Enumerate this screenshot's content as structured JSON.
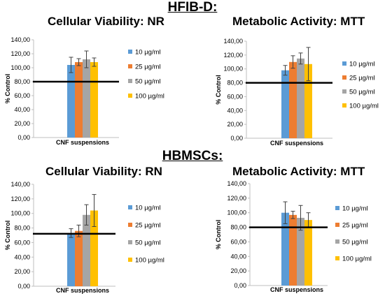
{
  "sections": [
    {
      "title": "HFIB-D:"
    },
    {
      "title": "HBMSCs:"
    }
  ],
  "chart_data": [
    {
      "type": "bar",
      "title": "Cellular Viability: NR",
      "ylabel": "% Control",
      "xlabel": "CNF suspensions",
      "ylim": [
        0,
        140
      ],
      "yticks": [
        "0,00",
        "20,00",
        "40,00",
        "60,00",
        "80,00",
        "100,00",
        "120,00",
        "140,00"
      ],
      "reference_line": 80,
      "series": [
        {
          "name": "10 µg/ml",
          "color": "#5B9BD5",
          "value": 104,
          "error": 11
        },
        {
          "name": "25 µg/ml",
          "color": "#ED7D31",
          "value": 108,
          "error": 5
        },
        {
          "name": "50 µg/ml",
          "color": "#A5A5A5",
          "value": 112,
          "error": 12
        },
        {
          "name": "100 µg/ml",
          "color": "#FFC000",
          "value": 108,
          "error": 6
        }
      ]
    },
    {
      "type": "bar",
      "title": "Metabolic Activity: MTT",
      "ylabel": "% Control",
      "xlabel": "CNF suspensions",
      "ylim": [
        0,
        140
      ],
      "yticks": [
        "0,00",
        "20,00",
        "40,00",
        "60,00",
        "80,00",
        "100,00",
        "120,00",
        "140,00"
      ],
      "reference_line": 80,
      "series": [
        {
          "name": "10 µg/ml",
          "color": "#5B9BD5",
          "value": 98,
          "error": 7
        },
        {
          "name": "25 µg/ml",
          "color": "#ED7D31",
          "value": 110,
          "error": 9
        },
        {
          "name": "50 µg/ml",
          "color": "#A5A5A5",
          "value": 115,
          "error": 8
        },
        {
          "name": "100 µg/ml",
          "color": "#FFC000",
          "value": 107,
          "error": 24
        }
      ]
    },
    {
      "type": "bar",
      "title": "Cellular Viability: RN",
      "ylabel": "% Control",
      "xlabel": "CNF suspensions",
      "ylim": [
        0,
        140
      ],
      "yticks": [
        "0,00",
        "20,00",
        "40,00",
        "60,00",
        "80,00",
        "100,00",
        "120,00",
        "140,00"
      ],
      "reference_line": 72,
      "series": [
        {
          "name": "10 µg/ml",
          "color": "#5B9BD5",
          "value": 73,
          "error": 6
        },
        {
          "name": "25 µg/ml",
          "color": "#ED7D31",
          "value": 76,
          "error": 8
        },
        {
          "name": "50 µg/ml",
          "color": "#A5A5A5",
          "value": 98,
          "error": 14
        },
        {
          "name": "100 µg/ml",
          "color": "#FFC000",
          "value": 104,
          "error": 22
        }
      ]
    },
    {
      "type": "bar",
      "title": "Metabolic Activity: MTT",
      "ylabel": "% Control",
      "xlabel": "CNF suspensions",
      "ylim": [
        0,
        140
      ],
      "yticks": [
        "0,00",
        "20,00",
        "40,00",
        "60,00",
        "80,00",
        "100,00",
        "120,00",
        "140,00"
      ],
      "reference_line": 80,
      "series": [
        {
          "name": "10 µg/ml",
          "color": "#5B9BD5",
          "value": 100,
          "error": 15
        },
        {
          "name": "25 µg/ml",
          "color": "#ED7D31",
          "value": 97,
          "error": 5
        },
        {
          "name": "50 µg/ml",
          "color": "#A5A5A5",
          "value": 93,
          "error": 17
        },
        {
          "name": "100 µg/ml",
          "color": "#FFC000",
          "value": 90,
          "error": 10
        }
      ]
    }
  ]
}
